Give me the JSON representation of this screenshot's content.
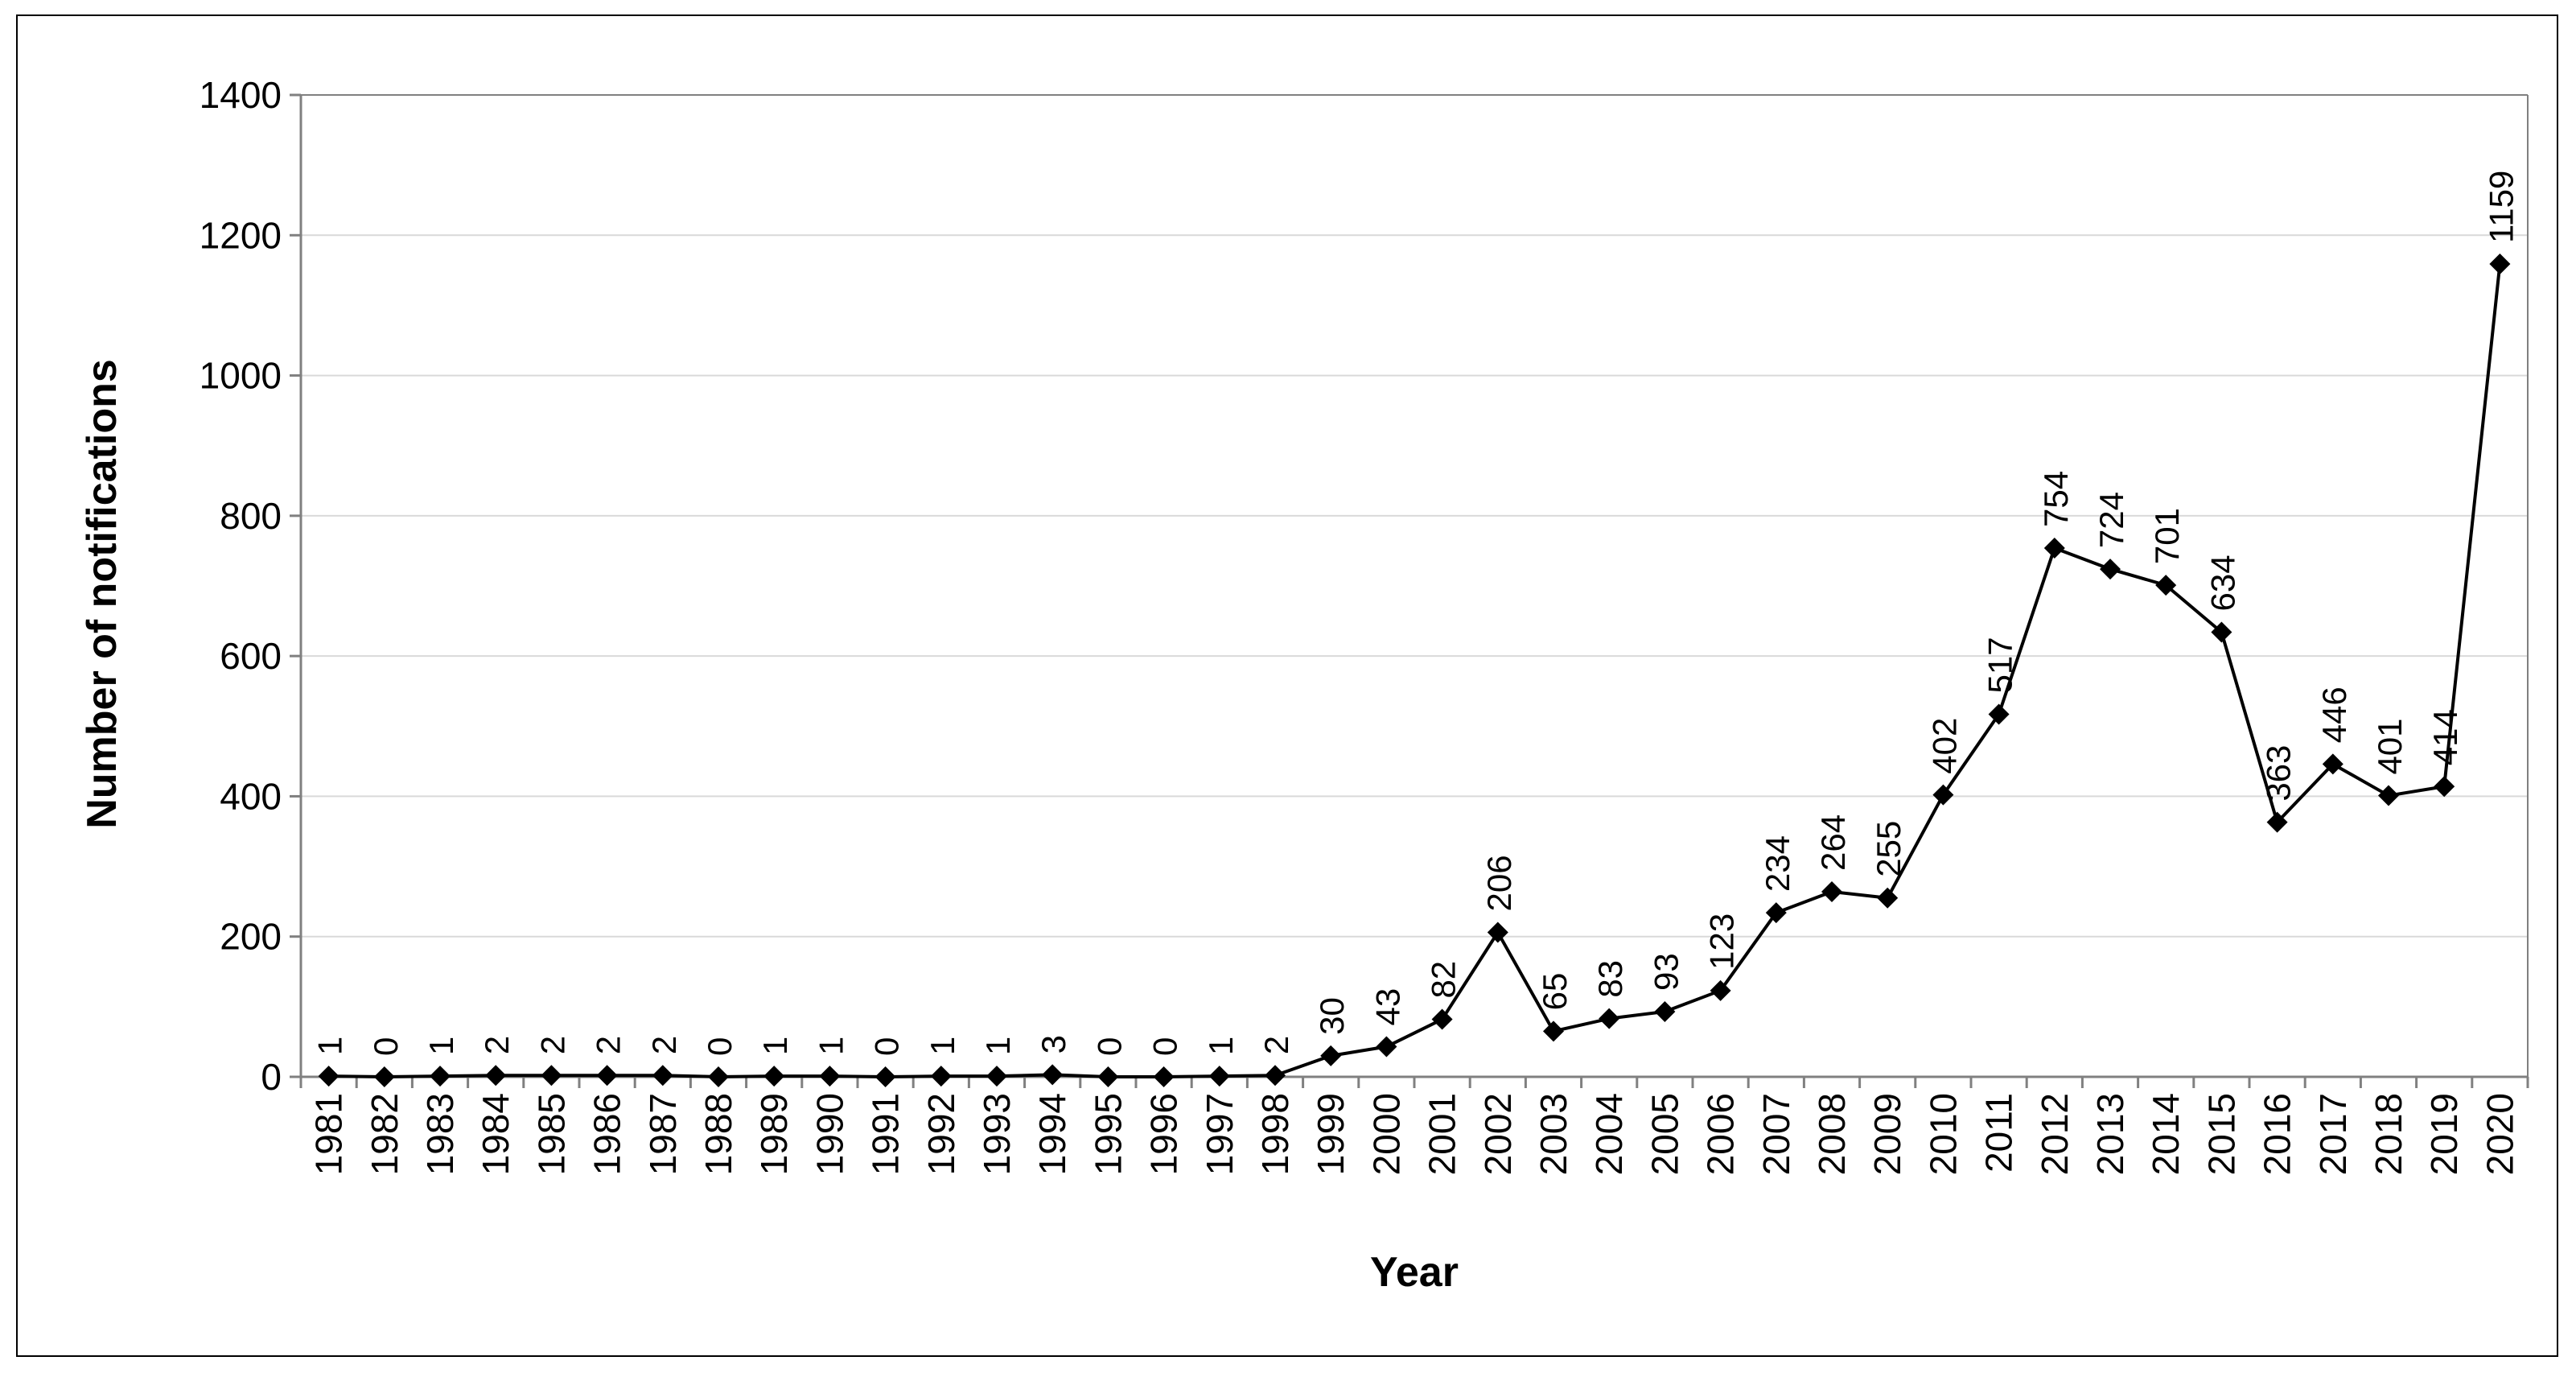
{
  "chart_data": {
    "type": "line",
    "title": "",
    "xlabel": "Year",
    "ylabel": "Number of notifications",
    "ylim": [
      0,
      1400
    ],
    "yticks": [
      0,
      200,
      400,
      600,
      800,
      1000,
      1200,
      1400
    ],
    "grid": true,
    "legend": "none",
    "marker": "diamond",
    "colors": {
      "line": "#000000",
      "grid": "#d9d9d9",
      "axis": "#808080"
    },
    "x": [
      "1981",
      "1982",
      "1983",
      "1984",
      "1985",
      "1986",
      "1987",
      "1988",
      "1989",
      "1990",
      "1991",
      "1992",
      "1993",
      "1994",
      "1995",
      "1996",
      "1997",
      "1998",
      "1999",
      "2000",
      "2001",
      "2002",
      "2003",
      "2004",
      "2005",
      "2006",
      "2007",
      "2008",
      "2009",
      "2010",
      "2011",
      "2012",
      "2013",
      "2014",
      "2015",
      "2016",
      "2017",
      "2018",
      "2019",
      "2020"
    ],
    "values": [
      1,
      0,
      1,
      2,
      2,
      2,
      2,
      0,
      1,
      1,
      0,
      1,
      1,
      3,
      0,
      0,
      1,
      2,
      30,
      43,
      82,
      206,
      65,
      83,
      93,
      123,
      234,
      264,
      255,
      402,
      517,
      754,
      724,
      701,
      634,
      363,
      446,
      401,
      414,
      1159
    ]
  }
}
